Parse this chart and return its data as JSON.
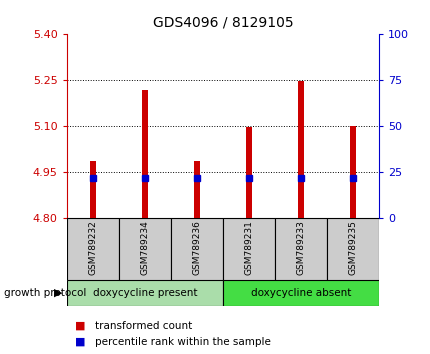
{
  "title": "GDS4096 / 8129105",
  "samples": [
    "GSM789232",
    "GSM789234",
    "GSM789236",
    "GSM789231",
    "GSM789233",
    "GSM789235"
  ],
  "bar_tops": [
    4.985,
    5.215,
    4.985,
    5.095,
    5.245,
    5.1
  ],
  "bar_bottom": 4.8,
  "blue_marker_y": [
    4.93,
    4.93,
    4.93,
    4.93,
    4.93,
    4.93
  ],
  "ylim_left": [
    4.8,
    5.4
  ],
  "yticks_left": [
    4.8,
    4.95,
    5.1,
    5.25,
    5.4
  ],
  "ylim_right": [
    0,
    100
  ],
  "yticks_right": [
    0,
    25,
    50,
    75,
    100
  ],
  "left_axis_color": "#cc0000",
  "right_axis_color": "#0000cc",
  "bar_color": "#cc0000",
  "blue_marker_color": "#0000cc",
  "group1_label": "doxycycline present",
  "group2_label": "doxycycline absent",
  "group1_color": "#aaddaa",
  "group2_color": "#44dd44",
  "growth_protocol_label": "growth protocol",
  "legend_red_label": "transformed count",
  "legend_blue_label": "percentile rank within the sample",
  "tick_label_color_left": "#cc0000",
  "tick_label_color_right": "#0000cc",
  "sample_box_color": "#cccccc",
  "bar_width": 0.12
}
